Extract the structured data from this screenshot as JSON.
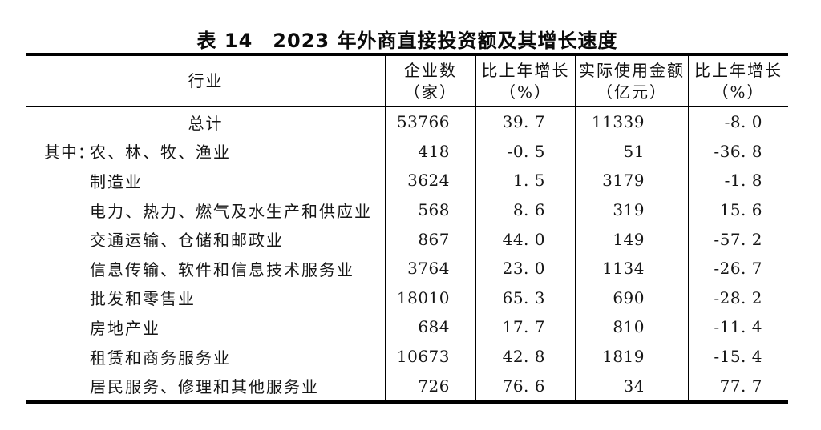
{
  "page": {
    "background": "#ffffff",
    "text_color": "#141414",
    "rule_color": "#000000"
  },
  "title": "表 14　2023 年外商直接投资额及其增长速度",
  "table": {
    "headers": [
      {
        "line1": "行业",
        "line2": ""
      },
      {
        "line1": "企业数",
        "line2": "（家）"
      },
      {
        "line1": "比上年增长",
        "line2": "（%）"
      },
      {
        "line1": "实际使用金额",
        "line2": "（亿元）"
      },
      {
        "line1": "比上年增长",
        "line2": "（%）"
      }
    ],
    "rows": [
      {
        "prefix": "",
        "industry": "总计",
        "align": "center",
        "enterprises": "53766",
        "growth1": "39. 7",
        "amount": "11339",
        "growth2": "-8. 0"
      },
      {
        "prefix": "其中：",
        "industry": "农、林、牧、渔业",
        "align": "left",
        "enterprises": "418",
        "growth1": "-0. 5",
        "amount": "51",
        "growth2": "-36. 8"
      },
      {
        "prefix": "",
        "industry": "制造业",
        "align": "left",
        "enterprises": "3624",
        "growth1": "1. 5",
        "amount": "3179",
        "growth2": "-1. 8"
      },
      {
        "prefix": "",
        "industry": "电力、热力、燃气及水生产和供应业",
        "align": "left",
        "enterprises": "568",
        "growth1": "8. 6",
        "amount": "319",
        "growth2": "15. 6"
      },
      {
        "prefix": "",
        "industry": "交通运输、仓储和邮政业",
        "align": "left",
        "enterprises": "867",
        "growth1": "44. 0",
        "amount": "149",
        "growth2": "-57. 2"
      },
      {
        "prefix": "",
        "industry": "信息传输、软件和信息技术服务业",
        "align": "left",
        "enterprises": "3764",
        "growth1": "23. 0",
        "amount": "1134",
        "growth2": "-26. 7"
      },
      {
        "prefix": "",
        "industry": "批发和零售业",
        "align": "left",
        "enterprises": "18010",
        "growth1": "65. 3",
        "amount": "690",
        "growth2": "-28. 2"
      },
      {
        "prefix": "",
        "industry": "房地产业",
        "align": "left",
        "enterprises": "684",
        "growth1": "17. 7",
        "amount": "810",
        "growth2": "-11. 4"
      },
      {
        "prefix": "",
        "industry": "租赁和商务服务业",
        "align": "left",
        "enterprises": "10673",
        "growth1": "42. 8",
        "amount": "1819",
        "growth2": "-15. 4"
      },
      {
        "prefix": "",
        "industry": "居民服务、修理和其他服务业",
        "align": "left",
        "enterprises": "726",
        "growth1": "76. 6",
        "amount": "34",
        "growth2": "77. 7"
      }
    ]
  }
}
